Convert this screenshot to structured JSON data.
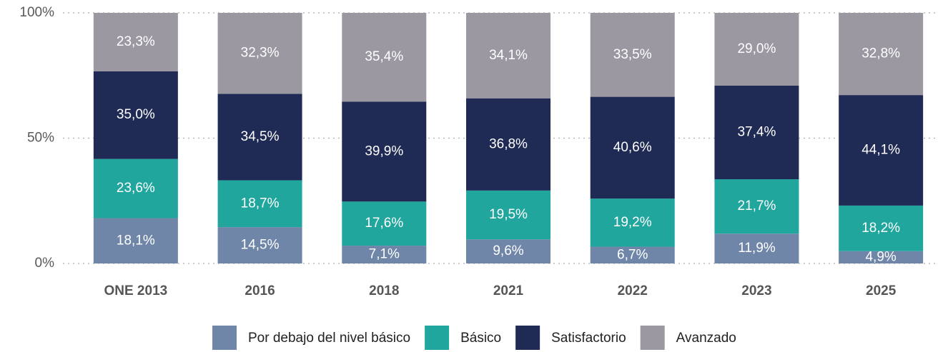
{
  "chart_data": {
    "type": "stacked_bar",
    "categories": [
      "ONE 2013",
      "2016",
      "2018",
      "2021",
      "2022",
      "2023",
      "2025"
    ],
    "series": [
      {
        "name": "Por debajo del nivel básico",
        "color": "#6f86a9",
        "values": [
          18.1,
          14.5,
          7.1,
          9.6,
          6.7,
          11.9,
          4.9
        ],
        "value_labels": [
          "18,1%",
          "14,5%",
          "7,1%",
          "9,6%",
          "6,7%",
          "11,9%",
          "4,9%"
        ]
      },
      {
        "name": "Básico",
        "color": "#21a69e",
        "values": [
          23.6,
          18.7,
          17.6,
          19.5,
          19.2,
          21.7,
          18.2
        ],
        "value_labels": [
          "23,6%",
          "18,7%",
          "17,6%",
          "19,5%",
          "19,2%",
          "21,7%",
          "18,2%"
        ]
      },
      {
        "name": "Satisfactorio",
        "color": "#1f2a55",
        "values": [
          35.0,
          34.5,
          39.9,
          36.8,
          40.6,
          37.4,
          44.1
        ],
        "value_labels": [
          "35,0%",
          "34,5%",
          "39,9%",
          "36,8%",
          "40,6%",
          "37,4%",
          "44,1%"
        ]
      },
      {
        "name": "Avanzado",
        "color": "#9b98a2",
        "values": [
          23.3,
          32.3,
          35.4,
          34.1,
          33.5,
          29.0,
          32.8
        ],
        "value_labels": [
          "23,3%",
          "32,3%",
          "35,4%",
          "34,1%",
          "33,5%",
          "29,0%",
          "32,8%"
        ]
      }
    ],
    "ylim": [
      0,
      100
    ],
    "yticks": [
      {
        "value": 0,
        "label": "0%"
      },
      {
        "value": 50,
        "label": "50%"
      },
      {
        "value": 100,
        "label": "100%"
      }
    ],
    "grid": true,
    "legend": "bottom"
  }
}
